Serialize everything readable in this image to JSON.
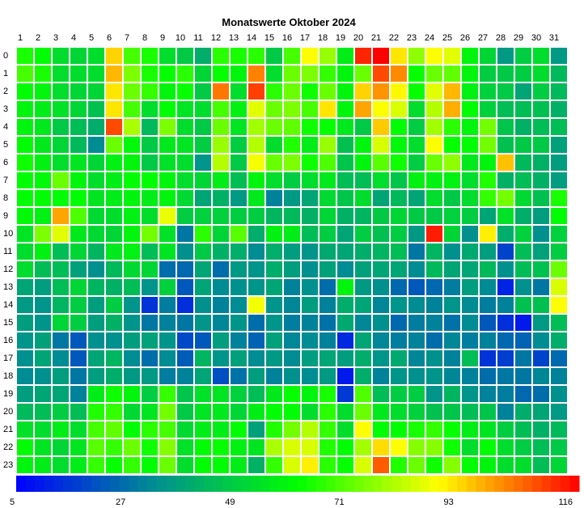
{
  "chart_data": {
    "type": "heatmap",
    "title": "Monatswerte Oktober 2024",
    "x_categories": [
      "1",
      "2",
      "3",
      "4",
      "5",
      "6",
      "7",
      "8",
      "9",
      "10",
      "11",
      "12",
      "13",
      "14",
      "15",
      "16",
      "17",
      "18",
      "19",
      "20",
      "21",
      "22",
      "23",
      "24",
      "25",
      "26",
      "27",
      "28",
      "29",
      "30",
      "31"
    ],
    "y_categories": [
      "0",
      "1",
      "2",
      "3",
      "4",
      "5",
      "6",
      "7",
      "8",
      "9",
      "10",
      "11",
      "12",
      "13",
      "14",
      "15",
      "16",
      "17",
      "18",
      "19",
      "20",
      "21",
      "22",
      "23"
    ],
    "colorbar": {
      "min": 5,
      "max": 116,
      "tick_labels": [
        "5",
        "27",
        "49",
        "71",
        "93",
        "116"
      ],
      "tick_values": [
        5,
        27,
        49,
        71,
        93,
        116
      ],
      "colors": [
        "#0000ff",
        "#009090",
        "#00ff00",
        "#ffff00",
        "#ff0000"
      ]
    },
    "grid": true,
    "values": [
      [
        63,
        60,
        52,
        50,
        52,
        93,
        68,
        63,
        52,
        47,
        40,
        65,
        63,
        65,
        47,
        68,
        88,
        77,
        56,
        112,
        116,
        91,
        76,
        88,
        85,
        58,
        50,
        35,
        48,
        52,
        35
      ],
      [
        68,
        63,
        52,
        52,
        52,
        96,
        74,
        63,
        61,
        65,
        50,
        61,
        58,
        102,
        52,
        72,
        74,
        66,
        58,
        72,
        108,
        101,
        61,
        72,
        71,
        58,
        48,
        47,
        48,
        52,
        43
      ],
      [
        60,
        58,
        52,
        50,
        50,
        91,
        72,
        66,
        58,
        61,
        47,
        103,
        52,
        109,
        65,
        72,
        62,
        72,
        58,
        93,
        100,
        89,
        61,
        85,
        96,
        57,
        49,
        47,
        38,
        48,
        43
      ],
      [
        58,
        56,
        53,
        50,
        45,
        91,
        68,
        52,
        60,
        54,
        52,
        68,
        57,
        85,
        72,
        74,
        68,
        91,
        58,
        98,
        88,
        84,
        52,
        80,
        97,
        60,
        49,
        44,
        44,
        45,
        41
      ],
      [
        58,
        55,
        47,
        44,
        40,
        108,
        79,
        43,
        74,
        52,
        47,
        72,
        54,
        78,
        72,
        71,
        62,
        61,
        55,
        47,
        94,
        60,
        48,
        78,
        65,
        58,
        73,
        46,
        41,
        44,
        44
      ],
      [
        60,
        55,
        50,
        43,
        32,
        72,
        59,
        47,
        55,
        54,
        48,
        77,
        48,
        80,
        52,
        64,
        56,
        77,
        45,
        58,
        84,
        59,
        52,
        88,
        61,
        60,
        73,
        45,
        47,
        47,
        37
      ],
      [
        62,
        57,
        52,
        54,
        50,
        57,
        58,
        47,
        53,
        52,
        34,
        80,
        47,
        87,
        72,
        74,
        62,
        69,
        46,
        58,
        70,
        62,
        48,
        72,
        76,
        55,
        58,
        95,
        43,
        41,
        36
      ],
      [
        60,
        59,
        72,
        58,
        52,
        56,
        60,
        60,
        58,
        52,
        50,
        56,
        44,
        58,
        52,
        48,
        52,
        55,
        44,
        44,
        52,
        46,
        57,
        57,
        57,
        52,
        64,
        41,
        44,
        41,
        36
      ],
      [
        60,
        60,
        60,
        60,
        54,
        56,
        58,
        56,
        58,
        51,
        38,
        41,
        35,
        55,
        30,
        35,
        38,
        51,
        46,
        52,
        38,
        43,
        38,
        52,
        47,
        52,
        66,
        73,
        51,
        45,
        63
      ],
      [
        59,
        57,
        98,
        69,
        51,
        52,
        57,
        52,
        86,
        48,
        49,
        49,
        48,
        48,
        42,
        43,
        41,
        50,
        41,
        42,
        47,
        50,
        47,
        47,
        49,
        48,
        38,
        53,
        40,
        36,
        60
      ],
      [
        54,
        74,
        85,
        55,
        51,
        50,
        58,
        73,
        53,
        28,
        65,
        50,
        70,
        40,
        57,
        56,
        44,
        48,
        38,
        48,
        45,
        48,
        35,
        113,
        50,
        33,
        90,
        40,
        49,
        33,
        49
      ],
      [
        52,
        57,
        44,
        50,
        42,
        55,
        57,
        44,
        54,
        33,
        47,
        41,
        40,
        32,
        40,
        36,
        34,
        39,
        38,
        40,
        42,
        44,
        28,
        42,
        33,
        39,
        36,
        18,
        44,
        37,
        48
      ],
      [
        52,
        44,
        44,
        37,
        33,
        43,
        51,
        50,
        26,
        25,
        38,
        26,
        35,
        34,
        40,
        36,
        33,
        37,
        32,
        37,
        38,
        38,
        32,
        43,
        38,
        38,
        43,
        33,
        44,
        45,
        72
      ],
      [
        38,
        36,
        44,
        50,
        42,
        41,
        44,
        34,
        49,
        22,
        38,
        32,
        33,
        34,
        38,
        30,
        33,
        26,
        58,
        35,
        33,
        25,
        22,
        25,
        29,
        36,
        32,
        12,
        33,
        28,
        84
      ],
      [
        35,
        34,
        42,
        48,
        36,
        48,
        34,
        15,
        29,
        14,
        33,
        30,
        32,
        87,
        34,
        31,
        36,
        30,
        40,
        38,
        31,
        34,
        32,
        30,
        34,
        32,
        29,
        30,
        45,
        45,
        88
      ],
      [
        36,
        34,
        50,
        48,
        36,
        41,
        34,
        28,
        30,
        28,
        34,
        31,
        34,
        26,
        34,
        29,
        30,
        27,
        39,
        31,
        33,
        25,
        29,
        30,
        27,
        32,
        22,
        14,
        10,
        35,
        44
      ],
      [
        34,
        37,
        28,
        22,
        33,
        33,
        36,
        37,
        34,
        19,
        22,
        36,
        30,
        24,
        37,
        31,
        32,
        30,
        13,
        38,
        31,
        29,
        30,
        26,
        31,
        29,
        30,
        25,
        24,
        32,
        40
      ],
      [
        33,
        38,
        32,
        22,
        38,
        42,
        32,
        26,
        32,
        23,
        42,
        34,
        37,
        32,
        35,
        32,
        36,
        38,
        36,
        40,
        34,
        39,
        31,
        33,
        30,
        44,
        15,
        17,
        28,
        18,
        25
      ],
      [
        32,
        33,
        36,
        28,
        36,
        40,
        35,
        35,
        29,
        30,
        38,
        20,
        27,
        36,
        30,
        33,
        32,
        35,
        10,
        40,
        30,
        34,
        33,
        34,
        31,
        30,
        26,
        28,
        28,
        31,
        30
      ],
      [
        36,
        38,
        38,
        30,
        56,
        62,
        58,
        48,
        66,
        46,
        53,
        54,
        49,
        44,
        55,
        61,
        58,
        63,
        16,
        69,
        44,
        48,
        48,
        34,
        42,
        34,
        30,
        29,
        25,
        26,
        33
      ],
      [
        43,
        44,
        48,
        44,
        64,
        66,
        51,
        54,
        73,
        47,
        54,
        55,
        50,
        56,
        60,
        60,
        52,
        65,
        52,
        72,
        55,
        52,
        49,
        45,
        46,
        44,
        46,
        30,
        40,
        38,
        35
      ],
      [
        53,
        52,
        56,
        52,
        68,
        71,
        60,
        65,
        68,
        51,
        56,
        56,
        60,
        37,
        64,
        73,
        80,
        66,
        52,
        88,
        60,
        60,
        63,
        66,
        61,
        56,
        54,
        48,
        44,
        41,
        43
      ],
      [
        60,
        54,
        50,
        54,
        70,
        66,
        72,
        62,
        75,
        53,
        60,
        61,
        57,
        54,
        79,
        84,
        84,
        64,
        60,
        78,
        92,
        88,
        75,
        75,
        62,
        52,
        60,
        52,
        48,
        44,
        47
      ],
      [
        58,
        56,
        52,
        56,
        66,
        61,
        66,
        60,
        72,
        52,
        60,
        60,
        56,
        41,
        66,
        84,
        90,
        65,
        61,
        84,
        106,
        64,
        72,
        62,
        75,
        60,
        58,
        52,
        52,
        44,
        50
      ]
    ]
  }
}
